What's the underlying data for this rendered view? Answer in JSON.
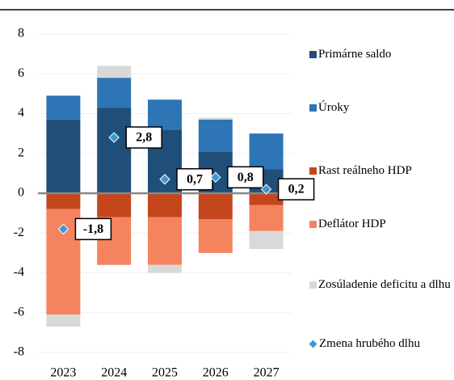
{
  "chart_data": {
    "type": "stacked-bar",
    "categories": [
      "2023",
      "2024",
      "2025",
      "2026",
      "2027"
    ],
    "series": [
      {
        "name": "Primárne saldo",
        "color": "#1f4e79",
        "values": [
          3.7,
          4.3,
          3.2,
          2.1,
          1.2
        ]
      },
      {
        "name": "Úroky",
        "color": "#2e75b6",
        "values": [
          1.2,
          1.5,
          1.5,
          1.6,
          1.8
        ]
      },
      {
        "name": "Rast reálneho HDP",
        "color": "#c5461c",
        "values": [
          -0.8,
          -1.2,
          -1.2,
          -1.3,
          -0.6
        ]
      },
      {
        "name": "Deflátor HDP",
        "color": "#f4845f",
        "values": [
          -5.3,
          -2.4,
          -2.4,
          -1.7,
          -1.3
        ]
      },
      {
        "name": "Zosúladenie deficitu a dlhu",
        "color": "#d9d9d9",
        "values": [
          -0.6,
          0.6,
          -0.4,
          0.1,
          -0.9
        ]
      },
      {
        "name": "Zmena hrubého dlhu",
        "color": "#3e97d3",
        "type": "scatter",
        "values": [
          -1.8,
          2.8,
          0.7,
          0.8,
          0.2
        ],
        "value_labels": [
          "-1,8",
          "2,8",
          "0,7",
          "0,8",
          "0,2"
        ]
      }
    ],
    "ylim": [
      -8,
      8
    ],
    "yticks": [
      -8,
      -6,
      -4,
      -2,
      0,
      2,
      4,
      6,
      8
    ],
    "grid": true
  }
}
